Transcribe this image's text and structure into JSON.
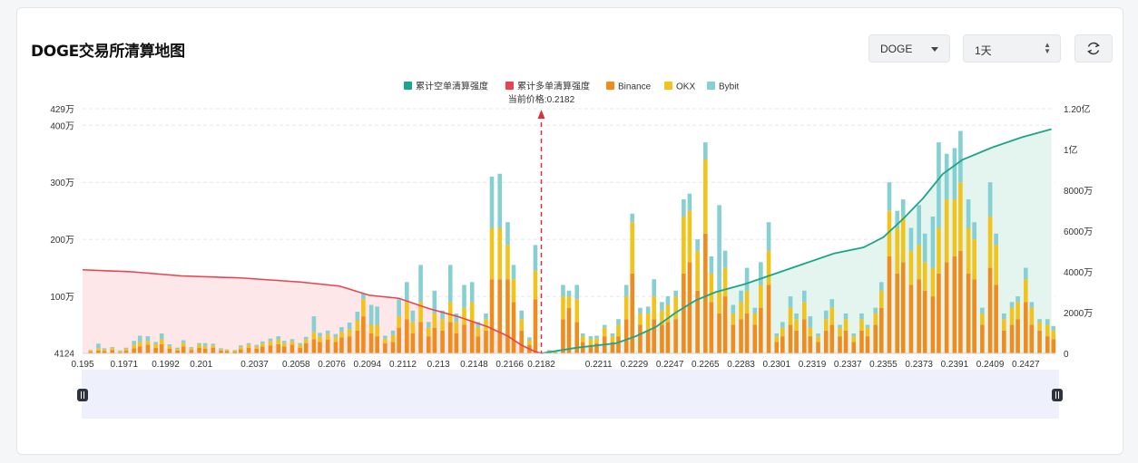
{
  "header": {
    "title": "DOGE交易所清算地图",
    "coin_select": "DOGE",
    "period_select": "1天"
  },
  "chart_data": {
    "type": "bar+area",
    "title": "DOGE交易所清算地图",
    "legend": [
      {
        "name": "累计空单清算强度",
        "color": "#1aa68a"
      },
      {
        "name": "累计多单清算强度",
        "color": "#e8434f"
      },
      {
        "name": "Binance",
        "color": "#f08c1d"
      },
      {
        "name": "OKX",
        "color": "#f2c31b"
      },
      {
        "name": "Bybit",
        "color": "#86cfd2"
      }
    ],
    "legend_position": "top-center",
    "current_price_label": "当前价格:0.2182",
    "current_price": 0.2182,
    "x_tick_labels": [
      "0.195",
      "0.1971",
      "0.1992",
      "0.201",
      "0.2037",
      "0.2058",
      "0.2076",
      "0.2094",
      "0.2112",
      "0.213",
      "0.2148",
      "0.2166",
      "0.2182",
      "0.2211",
      "0.2229",
      "0.2247",
      "0.2265",
      "0.2283",
      "0.2301",
      "0.2319",
      "0.2337",
      "0.2355",
      "0.2373",
      "0.2391",
      "0.2409",
      "0.2427"
    ],
    "x_range": [
      0.195,
      0.2442
    ],
    "y_left_ticks": [
      "4124",
      "100万",
      "200万",
      "300万",
      "400万",
      "429万"
    ],
    "y_left_values": [
      4124,
      1000000,
      2000000,
      3000000,
      4000000,
      4290000
    ],
    "y_left_range": [
      0,
      4290000
    ],
    "y_right_ticks": [
      "0",
      "2000万",
      "4000万",
      "6000万",
      "8000万",
      "1亿",
      "1.20亿"
    ],
    "y_right_values": [
      0,
      20000000,
      40000000,
      60000000,
      80000000,
      100000000,
      120000000
    ],
    "y_right_range": [
      0,
      120000000
    ],
    "grid": "horizontal dashed",
    "colors": {
      "binance": "#f08c1d",
      "okx": "#f2c31b",
      "bybit": "#86cfd2",
      "long": "#e8434f",
      "short": "#1aa68a",
      "long_fill": "#fde7e8",
      "short_fill": "#e4f4ef",
      "price_line": "#d9323c"
    },
    "bars": [
      {
        "x": 0.1954,
        "b": 0.03,
        "o": 0.02,
        "y": 0.01
      },
      {
        "x": 0.1958,
        "b": 0.05,
        "o": 0.04,
        "y": 0.08
      },
      {
        "x": 0.1961,
        "b": 0.04,
        "o": 0.03,
        "y": 0.02
      },
      {
        "x": 0.1965,
        "b": 0.06,
        "o": 0.03,
        "y": 0.02
      },
      {
        "x": 0.1969,
        "b": 0.02,
        "o": 0.02,
        "y": 0.01
      },
      {
        "x": 0.1972,
        "b": 0.05,
        "o": 0.03,
        "y": 0.02
      },
      {
        "x": 0.1976,
        "b": 0.09,
        "o": 0.06,
        "y": 0.07
      },
      {
        "x": 0.1979,
        "b": 0.12,
        "o": 0.08,
        "y": 0.11
      },
      {
        "x": 0.1983,
        "b": 0.15,
        "o": 0.07,
        "y": 0.08
      },
      {
        "x": 0.1987,
        "b": 0.1,
        "o": 0.06,
        "y": 0.04
      },
      {
        "x": 0.199,
        "b": 0.16,
        "o": 0.09,
        "y": 0.1
      },
      {
        "x": 0.1994,
        "b": 0.08,
        "o": 0.05,
        "y": 0.03
      },
      {
        "x": 0.1998,
        "b": 0.05,
        "o": 0.03,
        "y": 0.02
      },
      {
        "x": 0.2001,
        "b": 0.12,
        "o": 0.06,
        "y": 0.05
      },
      {
        "x": 0.2005,
        "b": 0.06,
        "o": 0.03,
        "y": 0.02
      },
      {
        "x": 0.2009,
        "b": 0.1,
        "o": 0.05,
        "y": 0.03
      },
      {
        "x": 0.2012,
        "b": 0.08,
        "o": 0.05,
        "y": 0.05
      },
      {
        "x": 0.2016,
        "b": 0.1,
        "o": 0.04,
        "y": 0.03
      },
      {
        "x": 0.202,
        "b": 0.05,
        "o": 0.02,
        "y": 0.02
      },
      {
        "x": 0.2023,
        "b": 0.04,
        "o": 0.02,
        "y": 0.01
      },
      {
        "x": 0.2027,
        "b": 0.03,
        "o": 0.02,
        "y": 0.01
      },
      {
        "x": 0.203,
        "b": 0.07,
        "o": 0.04,
        "y": 0.03
      },
      {
        "x": 0.2034,
        "b": 0.1,
        "o": 0.05,
        "y": 0.03
      },
      {
        "x": 0.2038,
        "b": 0.08,
        "o": 0.04,
        "y": 0.03
      },
      {
        "x": 0.2041,
        "b": 0.12,
        "o": 0.05,
        "y": 0.04
      },
      {
        "x": 0.2045,
        "b": 0.14,
        "o": 0.07,
        "y": 0.05
      },
      {
        "x": 0.2049,
        "b": 0.16,
        "o": 0.08,
        "y": 0.06
      },
      {
        "x": 0.2052,
        "b": 0.12,
        "o": 0.06,
        "y": 0.04
      },
      {
        "x": 0.2056,
        "b": 0.15,
        "o": 0.06,
        "y": 0.04
      },
      {
        "x": 0.206,
        "b": 0.1,
        "o": 0.05,
        "y": 0.03
      },
      {
        "x": 0.2063,
        "b": 0.18,
        "o": 0.07,
        "y": 0.04
      },
      {
        "x": 0.2067,
        "b": 0.25,
        "o": 0.12,
        "y": 0.28
      },
      {
        "x": 0.207,
        "b": 0.2,
        "o": 0.09,
        "y": 0.07
      },
      {
        "x": 0.2074,
        "b": 0.24,
        "o": 0.1,
        "y": 0.06
      },
      {
        "x": 0.2078,
        "b": 0.2,
        "o": 0.08,
        "y": 0.06
      },
      {
        "x": 0.2081,
        "b": 0.28,
        "o": 0.1,
        "y": 0.08
      },
      {
        "x": 0.2085,
        "b": 0.3,
        "o": 0.12,
        "y": 0.12
      },
      {
        "x": 0.2089,
        "b": 0.4,
        "o": 0.18,
        "y": 0.15
      },
      {
        "x": 0.2092,
        "b": 0.65,
        "o": 0.3,
        "y": 0.1
      },
      {
        "x": 0.2096,
        "b": 0.35,
        "o": 0.15,
        "y": 0.35
      },
      {
        "x": 0.2099,
        "b": 0.3,
        "o": 0.2,
        "y": 0.32
      },
      {
        "x": 0.2103,
        "b": 0.18,
        "o": 0.08,
        "y": 0.05
      },
      {
        "x": 0.2107,
        "b": 0.2,
        "o": 0.12,
        "y": 0.08
      },
      {
        "x": 0.211,
        "b": 0.45,
        "o": 0.2,
        "y": 0.3
      },
      {
        "x": 0.2114,
        "b": 0.6,
        "o": 0.3,
        "y": 0.35
      },
      {
        "x": 0.2117,
        "b": 0.35,
        "o": 0.2,
        "y": 0.2
      },
      {
        "x": 0.2121,
        "b": 0.55,
        "o": 0.35,
        "y": 0.65
      },
      {
        "x": 0.2125,
        "b": 0.3,
        "o": 0.15,
        "y": 0.1
      },
      {
        "x": 0.2128,
        "b": 0.45,
        "o": 0.25,
        "y": 0.4
      },
      {
        "x": 0.2132,
        "b": 0.4,
        "o": 0.2,
        "y": 0.15
      },
      {
        "x": 0.2136,
        "b": 0.55,
        "o": 0.35,
        "y": 0.65
      },
      {
        "x": 0.2139,
        "b": 0.35,
        "o": 0.2,
        "y": 0.15
      },
      {
        "x": 0.2143,
        "b": 0.5,
        "o": 0.3,
        "y": 0.4
      },
      {
        "x": 0.2147,
        "b": 0.55,
        "o": 0.35,
        "y": 0.35
      },
      {
        "x": 0.215,
        "b": 0.3,
        "o": 0.15,
        "y": 0.1
      },
      {
        "x": 0.2154,
        "b": 0.4,
        "o": 0.2,
        "y": 0.1
      },
      {
        "x": 0.2157,
        "b": 1.3,
        "o": 0.9,
        "y": 0.9
      },
      {
        "x": 0.2161,
        "b": 1.3,
        "o": 0.9,
        "y": 0.95
      },
      {
        "x": 0.2165,
        "b": 1.3,
        "o": 0.6,
        "y": 0.4
      },
      {
        "x": 0.2168,
        "b": 0.9,
        "o": 0.4,
        "y": 0.25
      },
      {
        "x": 0.2172,
        "b": 0.4,
        "o": 0.2,
        "y": 0.15
      },
      {
        "x": 0.2176,
        "b": 0.15,
        "o": 0.08,
        "y": 0.05
      },
      {
        "x": 0.2179,
        "b": 0.95,
        "o": 0.5,
        "y": 0.45
      },
      {
        "x": 0.2186,
        "b": 0.03,
        "o": 0.02,
        "y": 0.01
      },
      {
        "x": 0.2189,
        "b": 0.02,
        "o": 0.02,
        "y": 0.01
      },
      {
        "x": 0.2193,
        "b": 0.6,
        "o": 0.4,
        "y": 0.2
      },
      {
        "x": 0.2196,
        "b": 0.8,
        "o": 0.2,
        "y": 0.1
      },
      {
        "x": 0.22,
        "b": 0.55,
        "o": 0.4,
        "y": 0.25
      },
      {
        "x": 0.2203,
        "b": 0.2,
        "o": 0.1,
        "y": 0.05
      },
      {
        "x": 0.2207,
        "b": 0.15,
        "o": 0.1,
        "y": 0.05
      },
      {
        "x": 0.221,
        "b": 0.18,
        "o": 0.08,
        "y": 0.05
      },
      {
        "x": 0.2214,
        "b": 0.3,
        "o": 0.15,
        "y": 0.05
      },
      {
        "x": 0.2218,
        "b": 0.2,
        "o": 0.1,
        "y": 0.05
      },
      {
        "x": 0.2221,
        "b": 0.3,
        "o": 0.2,
        "y": 0.1
      },
      {
        "x": 0.2225,
        "b": 0.6,
        "o": 0.4,
        "y": 0.2
      },
      {
        "x": 0.2228,
        "b": 1.4,
        "o": 0.9,
        "y": 0.15
      },
      {
        "x": 0.2232,
        "b": 0.5,
        "o": 0.2,
        "y": 0.1
      },
      {
        "x": 0.2236,
        "b": 0.4,
        "o": 0.3,
        "y": 0.12
      },
      {
        "x": 0.2239,
        "b": 0.6,
        "o": 0.4,
        "y": 0.3
      },
      {
        "x": 0.2243,
        "b": 0.5,
        "o": 0.25,
        "y": 0.15
      },
      {
        "x": 0.2246,
        "b": 0.55,
        "o": 0.3,
        "y": 0.15
      },
      {
        "x": 0.225,
        "b": 0.6,
        "o": 0.4,
        "y": 0.1
      },
      {
        "x": 0.2254,
        "b": 1.4,
        "o": 1.0,
        "y": 0.3
      },
      {
        "x": 0.2257,
        "b": 1.6,
        "o": 0.9,
        "y": 0.3
      },
      {
        "x": 0.2261,
        "b": 1.1,
        "o": 0.7,
        "y": 0.2
      },
      {
        "x": 0.2265,
        "b": 2.1,
        "o": 1.3,
        "y": 0.3
      },
      {
        "x": 0.2268,
        "b": 0.9,
        "o": 0.5,
        "y": 0.3
      },
      {
        "x": 0.2272,
        "b": 0.7,
        "o": 0.4,
        "y": 1.5
      },
      {
        "x": 0.2275,
        "b": 1.0,
        "o": 0.5,
        "y": 0.3
      },
      {
        "x": 0.2279,
        "b": 0.5,
        "o": 0.2,
        "y": 0.15
      },
      {
        "x": 0.2283,
        "b": 0.6,
        "o": 0.3,
        "y": 0.2
      },
      {
        "x": 0.2286,
        "b": 0.7,
        "o": 0.4,
        "y": 0.4
      },
      {
        "x": 0.229,
        "b": 0.5,
        "o": 0.2,
        "y": 0.1
      },
      {
        "x": 0.2293,
        "b": 0.8,
        "o": 0.4,
        "y": 0.4
      },
      {
        "x": 0.2297,
        "b": 1.2,
        "o": 0.6,
        "y": 0.5
      },
      {
        "x": 0.2301,
        "b": 0.2,
        "o": 0.1,
        "y": 0.05
      },
      {
        "x": 0.2304,
        "b": 0.3,
        "o": 0.15,
        "y": 0.1
      },
      {
        "x": 0.2308,
        "b": 0.5,
        "o": 0.3,
        "y": 0.2
      },
      {
        "x": 0.2311,
        "b": 0.4,
        "o": 0.2,
        "y": 0.1
      },
      {
        "x": 0.2315,
        "b": 0.6,
        "o": 0.3,
        "y": 0.2
      },
      {
        "x": 0.2318,
        "b": 0.3,
        "o": 0.15,
        "y": 0.2
      },
      {
        "x": 0.2322,
        "b": 0.2,
        "o": 0.1,
        "y": 0.05
      },
      {
        "x": 0.2326,
        "b": 0.4,
        "o": 0.2,
        "y": 0.15
      },
      {
        "x": 0.2329,
        "b": 0.5,
        "o": 0.3,
        "y": 0.15
      },
      {
        "x": 0.2333,
        "b": 0.3,
        "o": 0.15,
        "y": 0.05
      },
      {
        "x": 0.2336,
        "b": 0.4,
        "o": 0.2,
        "y": 0.1
      },
      {
        "x": 0.234,
        "b": 0.2,
        "o": 0.1,
        "y": 0.05
      },
      {
        "x": 0.2344,
        "b": 0.4,
        "o": 0.2,
        "y": 0.1
      },
      {
        "x": 0.2347,
        "b": 0.3,
        "o": 0.15,
        "y": 0.05
      },
      {
        "x": 0.2351,
        "b": 0.5,
        "o": 0.2,
        "y": 0.1
      },
      {
        "x": 0.2354,
        "b": 0.8,
        "o": 0.3,
        "y": 0.15
      },
      {
        "x": 0.2358,
        "b": 1.7,
        "o": 0.8,
        "y": 0.5
      },
      {
        "x": 0.2362,
        "b": 1.4,
        "o": 0.8,
        "y": 0.3
      },
      {
        "x": 0.2365,
        "b": 1.6,
        "o": 0.8,
        "y": 0.3
      },
      {
        "x": 0.2369,
        "b": 1.2,
        "o": 0.6,
        "y": 0.4
      },
      {
        "x": 0.2373,
        "b": 1.3,
        "o": 0.6,
        "y": 0.7
      },
      {
        "x": 0.2376,
        "b": 1.1,
        "o": 0.5,
        "y": 0.5
      },
      {
        "x": 0.238,
        "b": 1.0,
        "o": 0.5,
        "y": 0.9
      },
      {
        "x": 0.2383,
        "b": 1.4,
        "o": 0.8,
        "y": 1.5
      },
      {
        "x": 0.2387,
        "b": 1.6,
        "o": 1.1,
        "y": 0.8
      },
      {
        "x": 0.2391,
        "b": 1.7,
        "o": 1.0,
        "y": 0.9
      },
      {
        "x": 0.2394,
        "b": 1.8,
        "o": 1.2,
        "y": 0.9
      },
      {
        "x": 0.2398,
        "b": 1.4,
        "o": 0.8,
        "y": 0.5
      },
      {
        "x": 0.2401,
        "b": 1.3,
        "o": 0.7,
        "y": 0.3
      },
      {
        "x": 0.2405,
        "b": 0.5,
        "o": 0.2,
        "y": 0.1
      },
      {
        "x": 0.2409,
        "b": 1.5,
        "o": 0.9,
        "y": 0.6
      },
      {
        "x": 0.2412,
        "b": 1.2,
        "o": 0.7,
        "y": 0.2
      },
      {
        "x": 0.2416,
        "b": 0.4,
        "o": 0.2,
        "y": 0.1
      },
      {
        "x": 0.242,
        "b": 0.5,
        "o": 0.3,
        "y": 0.1
      },
      {
        "x": 0.2423,
        "b": 0.6,
        "o": 0.3,
        "y": 0.1
      },
      {
        "x": 0.2427,
        "b": 0.9,
        "o": 0.4,
        "y": 0.2
      },
      {
        "x": 0.243,
        "b": 0.5,
        "o": 0.3,
        "y": 0.1
      },
      {
        "x": 0.2434,
        "b": 0.4,
        "o": 0.15,
        "y": 0.05
      },
      {
        "x": 0.2438,
        "b": 0.3,
        "o": 0.2,
        "y": 0.1
      },
      {
        "x": 0.2441,
        "b": 0.25,
        "o": 0.15,
        "y": 0.08
      }
    ],
    "cumulative_long": [
      {
        "x": 0.195,
        "v": 41000000
      },
      {
        "x": 0.1975,
        "v": 40000000
      },
      {
        "x": 0.2,
        "v": 38000000
      },
      {
        "x": 0.203,
        "v": 37000000
      },
      {
        "x": 0.206,
        "v": 35000000
      },
      {
        "x": 0.208,
        "v": 33000000
      },
      {
        "x": 0.2095,
        "v": 28500000
      },
      {
        "x": 0.211,
        "v": 27000000
      },
      {
        "x": 0.2125,
        "v": 22000000
      },
      {
        "x": 0.214,
        "v": 18000000
      },
      {
        "x": 0.2155,
        "v": 13000000
      },
      {
        "x": 0.2165,
        "v": 8500000
      },
      {
        "x": 0.2172,
        "v": 4000000
      },
      {
        "x": 0.2179,
        "v": 800000
      },
      {
        "x": 0.2182,
        "v": 0
      }
    ],
    "cumulative_short": [
      {
        "x": 0.2182,
        "v": 0
      },
      {
        "x": 0.22,
        "v": 2800000
      },
      {
        "x": 0.222,
        "v": 5000000
      },
      {
        "x": 0.223,
        "v": 8500000
      },
      {
        "x": 0.224,
        "v": 13000000
      },
      {
        "x": 0.225,
        "v": 20000000
      },
      {
        "x": 0.226,
        "v": 26000000
      },
      {
        "x": 0.227,
        "v": 30000000
      },
      {
        "x": 0.2285,
        "v": 34000000
      },
      {
        "x": 0.23,
        "v": 39000000
      },
      {
        "x": 0.2315,
        "v": 44000000
      },
      {
        "x": 0.233,
        "v": 49000000
      },
      {
        "x": 0.2345,
        "v": 52000000
      },
      {
        "x": 0.2355,
        "v": 57000000
      },
      {
        "x": 0.2365,
        "v": 66000000
      },
      {
        "x": 0.2375,
        "v": 76000000
      },
      {
        "x": 0.2385,
        "v": 88000000
      },
      {
        "x": 0.2395,
        "v": 95000000
      },
      {
        "x": 0.241,
        "v": 101000000
      },
      {
        "x": 0.2425,
        "v": 106000000
      },
      {
        "x": 0.244,
        "v": 110000000
      }
    ]
  }
}
